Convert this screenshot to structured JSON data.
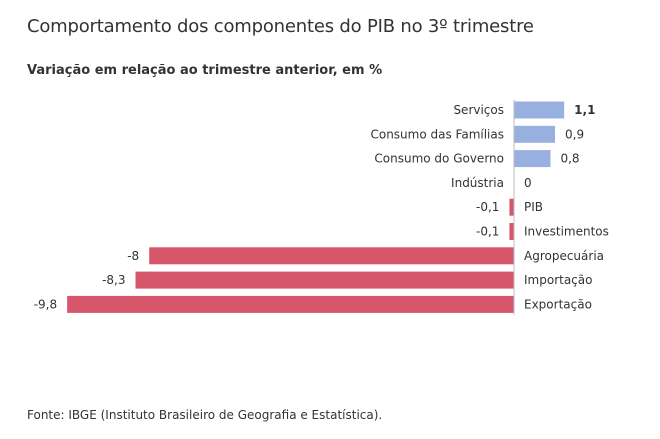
{
  "chart_data": {
    "type": "bar",
    "orientation": "horizontal",
    "title": "Comportamento dos componentes do PIB no 3º trimestre",
    "subtitle": "Variação em relação ao trimestre anterior, em %",
    "categories": [
      "Serviços",
      "Consumo das Famílias",
      "Consumo do Governo",
      "Indústria",
      "PIB",
      "Investimentos",
      "Agropecuária",
      "Importação",
      "Exportação"
    ],
    "values": [
      1.1,
      0.9,
      0.8,
      0,
      -0.1,
      -0.1,
      -8,
      -8.3,
      -9.8
    ],
    "value_labels": [
      "1,1",
      "0,9",
      "0,8",
      "0",
      "-0,1",
      "-0,1",
      "-8",
      "-8,3",
      "-9,8"
    ],
    "xlim": [
      -10,
      1.5
    ],
    "grid": false,
    "colors": {
      "positive": "#98b0e0",
      "negative": "#d6576b"
    }
  },
  "source": "Fonte: IBGE (Instituto Brasileiro de Geografia e Estatística)."
}
